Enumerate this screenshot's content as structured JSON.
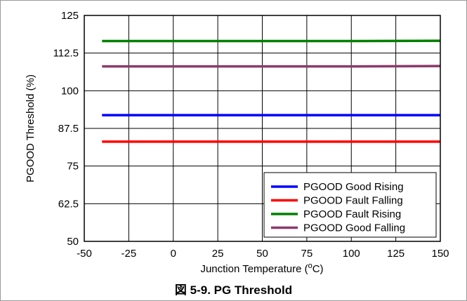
{
  "caption": {
    "prefix": "図",
    "text": "5-9. PG Threshold"
  },
  "chart_data": {
    "type": "line",
    "xlabel": "Junction Temperature (",
    "xlabel_sup": "o",
    "xlabel_suffix": "C)",
    "ylabel": "PGOOD Threshold (%)",
    "xlim": [
      -50,
      150
    ],
    "ylim": [
      50,
      125
    ],
    "x_ticks": [
      -50,
      -25,
      0,
      25,
      50,
      75,
      100,
      125,
      150
    ],
    "y_ticks": [
      50,
      62.5,
      75,
      87.5,
      100,
      112.5,
      125
    ],
    "x_tick_labels": [
      "-50",
      "-25",
      "0",
      "25",
      "50",
      "75",
      "100",
      "125",
      "150"
    ],
    "y_tick_labels": [
      "50",
      "62.5",
      "75",
      "87.5",
      "100",
      "112.5",
      "125"
    ],
    "grid": true,
    "legend_position": "bottom-right",
    "series": [
      {
        "name": "PGOOD Good Rising",
        "color": "#0000ff",
        "x": [
          -40,
          0,
          50,
          100,
          150
        ],
        "y": [
          91.9,
          91.9,
          91.9,
          91.9,
          91.9
        ]
      },
      {
        "name": "PGOOD Fault Falling",
        "color": "#ff0000",
        "x": [
          -40,
          0,
          50,
          100,
          150
        ],
        "y": [
          83.1,
          83.1,
          83.1,
          83.1,
          83.1
        ]
      },
      {
        "name": "PGOOD Fault Rising",
        "color": "#008000",
        "x": [
          -40,
          0,
          50,
          100,
          150
        ],
        "y": [
          116.5,
          116.5,
          116.5,
          116.5,
          116.6
        ]
      },
      {
        "name": "PGOOD Good Falling",
        "color": "#8b3a6b",
        "x": [
          -40,
          0,
          50,
          100,
          150
        ],
        "y": [
          108.1,
          108.1,
          108.1,
          108.1,
          108.2
        ]
      }
    ]
  }
}
